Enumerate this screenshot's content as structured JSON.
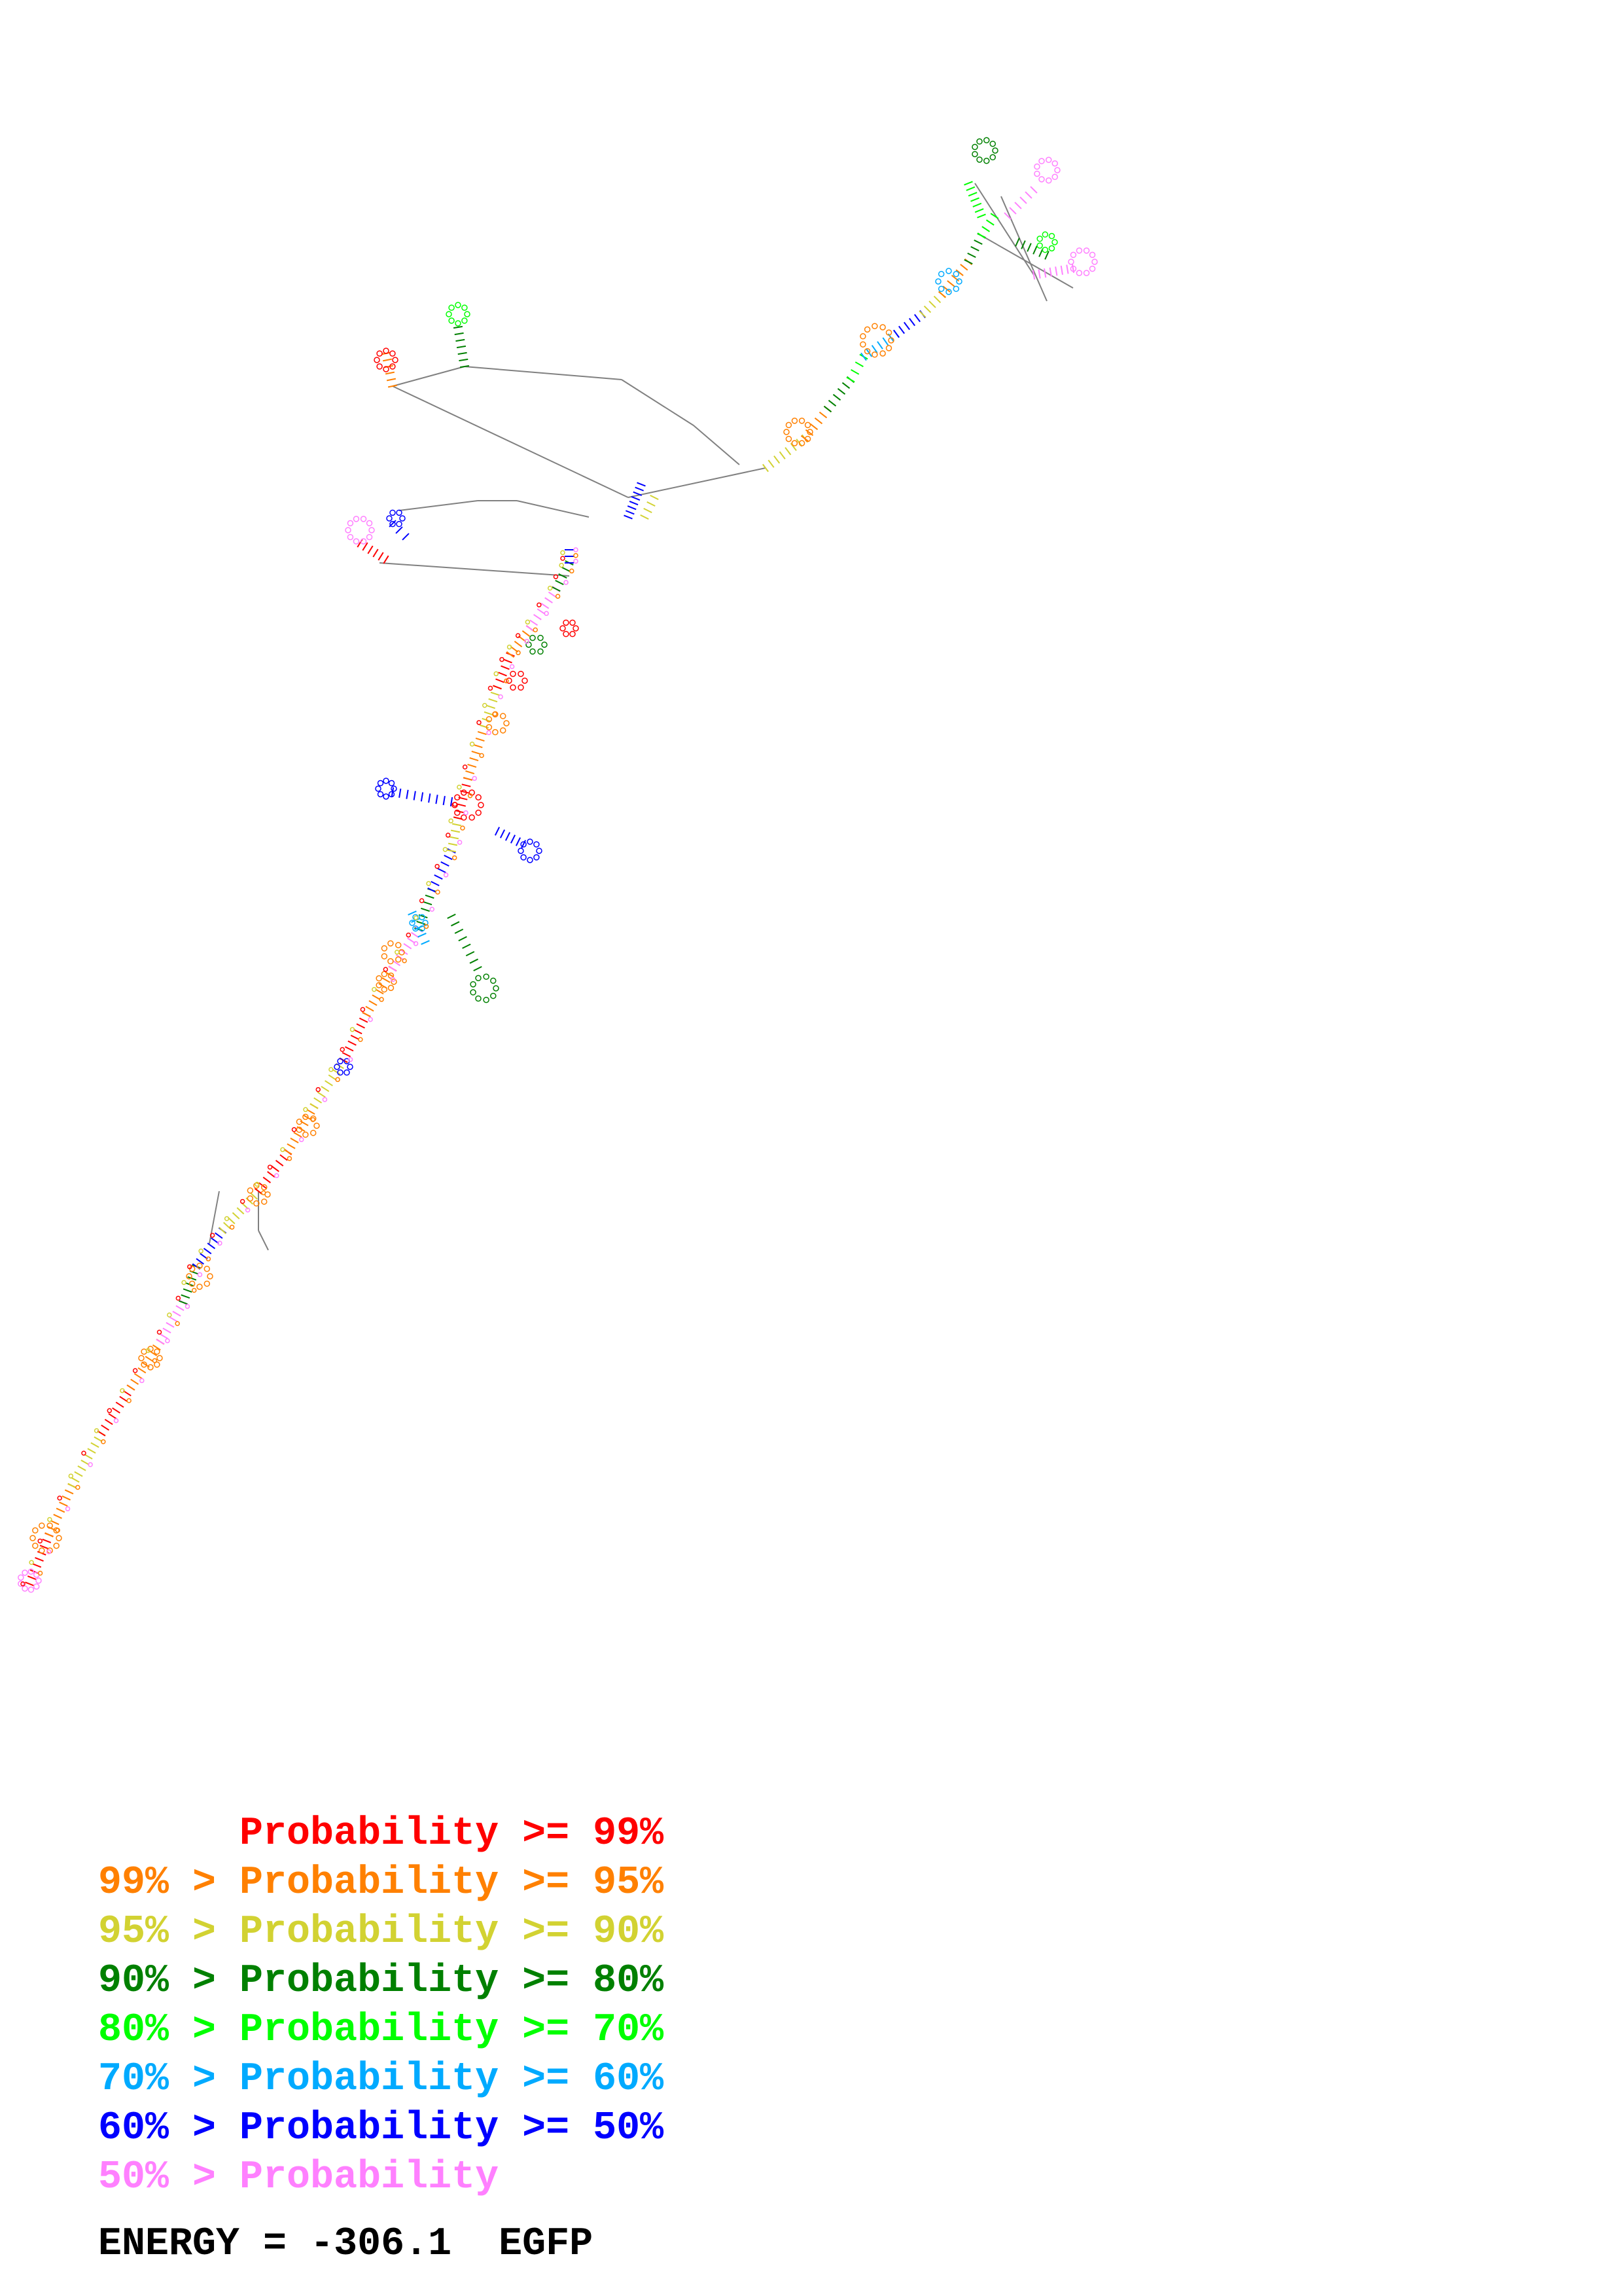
{
  "legend": {
    "rows": [
      {
        "prefix": "      ",
        "text": "Probability >= 99%",
        "color": "#ff0000"
      },
      {
        "prefix": "",
        "text": "99% > Probability >= 95%",
        "color": "#ff8000"
      },
      {
        "prefix": "",
        "text": "95% > Probability >= 90%",
        "color": "#d2d232"
      },
      {
        "prefix": "",
        "text": "90% > Probability >= 80%",
        "color": "#008000"
      },
      {
        "prefix": "",
        "text": "80% > Probability >= 70%",
        "color": "#00ff00"
      },
      {
        "prefix": "",
        "text": "70% > Probability >= 60%",
        "color": "#00aaff"
      },
      {
        "prefix": "",
        "text": "60% > Probability >= 50%",
        "color": "#0000ff"
      },
      {
        "prefix": "",
        "text": "50% > Probability",
        "color": "#ff80ff"
      }
    ]
  },
  "energy": {
    "label": "ENERGY = ",
    "value": "-306.1",
    "sequence_name": "EGFP"
  },
  "structure": {
    "backbone_color": "#808080",
    "base_color": "#555555"
  }
}
